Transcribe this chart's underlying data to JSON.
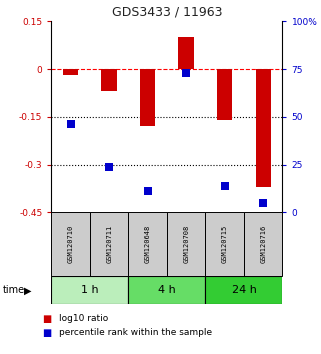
{
  "title": "GDS3433 / 11963",
  "samples": [
    "GSM120710",
    "GSM120711",
    "GSM120648",
    "GSM120708",
    "GSM120715",
    "GSM120716"
  ],
  "log10_ratio": [
    -0.02,
    -0.07,
    -0.18,
    0.1,
    -0.16,
    -0.37
  ],
  "percentile_rank": [
    46,
    24,
    11,
    73,
    14,
    5
  ],
  "ylim_left": [
    -0.45,
    0.15
  ],
  "ylim_right": [
    0,
    100
  ],
  "yticks_left": [
    0.15,
    0,
    -0.15,
    -0.3,
    -0.45
  ],
  "yticks_right": [
    100,
    75,
    50,
    25,
    0
  ],
  "hlines": [
    0,
    -0.15,
    -0.3
  ],
  "hline_styles": [
    "dashed",
    "dotted",
    "dotted"
  ],
  "hline_colors": [
    "red",
    "black",
    "black"
  ],
  "bar_color": "#cc0000",
  "dot_color": "#0000cc",
  "bar_width": 0.4,
  "dot_size": 28,
  "groups": [
    {
      "label": "1 h",
      "samples": [
        0,
        1
      ],
      "color": "#bbeebb"
    },
    {
      "label": "4 h",
      "samples": [
        2,
        3
      ],
      "color": "#66dd66"
    },
    {
      "label": "24 h",
      "samples": [
        4,
        5
      ],
      "color": "#33cc33"
    }
  ],
  "time_label": "time",
  "legend_bar_label": "log10 ratio",
  "legend_dot_label": "percentile rank within the sample",
  "title_color": "#222222",
  "left_axis_color": "#cc0000",
  "right_axis_color": "#0000cc",
  "sample_box_color": "#cccccc",
  "fig_width": 3.21,
  "fig_height": 3.54
}
